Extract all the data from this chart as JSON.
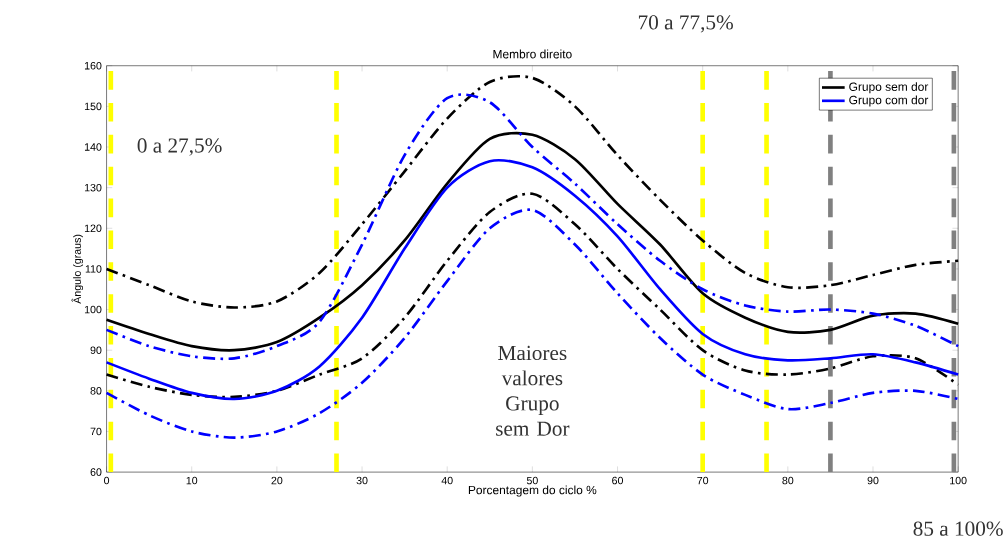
{
  "chart_data": {
    "type": "line",
    "title": "Membro direito",
    "xlabel": "Porcentagem do ciclo %",
    "ylabel": "Ângulo (graus)",
    "x": [
      0,
      5,
      10,
      15,
      20,
      25,
      30,
      35,
      40,
      45,
      50,
      55,
      60,
      65,
      70,
      75,
      80,
      85,
      90,
      95,
      100
    ],
    "series": [
      {
        "color": "#000000",
        "line_style": "dashdot",
        "values": [
          110,
          106,
          102,
          100.5,
          102,
          109,
          121,
          134,
          147,
          156,
          157,
          150,
          138,
          127,
          117,
          109,
          105.5,
          106,
          108.5,
          111,
          112
        ]
      },
      {
        "name": "Grupo sem dor",
        "color": "#000000",
        "line_style": "solid",
        "values": [
          97.5,
          94,
          91,
          90,
          92,
          98,
          106,
          117,
          131,
          142,
          143,
          137,
          126,
          116,
          104,
          98,
          94.5,
          95,
          98.5,
          99,
          96.5
        ]
      },
      {
        "color": "#000000",
        "line_style": "dashdot",
        "values": [
          84,
          81,
          79,
          78.5,
          80,
          84,
          88,
          98,
          112,
          124,
          128.5,
          121,
          110,
          100,
          90,
          85,
          84,
          85.5,
          88.5,
          88,
          81.5
        ]
      },
      {
        "color": "#0000ff",
        "line_style": "dashdot",
        "values": [
          95,
          91,
          88.5,
          88,
          91,
          97,
          116,
          138,
          152,
          151,
          140,
          131,
          121,
          112,
          105,
          101,
          99.5,
          100,
          99,
          96,
          91
        ]
      },
      {
        "name": "Grupo com dor",
        "color": "#0000ff",
        "line_style": "solid",
        "values": [
          87,
          83,
          79.5,
          78,
          80,
          86,
          98,
          115,
          130,
          136.5,
          135,
          128,
          118,
          105,
          94,
          89,
          87.5,
          88,
          89,
          87,
          84
        ]
      },
      {
        "color": "#0000ff",
        "line_style": "dashdot",
        "values": [
          79.5,
          74,
          70,
          68.5,
          70,
          74.5,
          82,
          93,
          107,
          120,
          124.5,
          116,
          104,
          93,
          84,
          79,
          75.5,
          77,
          79.5,
          80,
          78
        ]
      }
    ],
    "xlim": [
      0,
      100
    ],
    "ylim": [
      60,
      160
    ],
    "xticks": [
      0,
      10,
      20,
      30,
      40,
      50,
      60,
      70,
      80,
      90,
      100
    ],
    "yticks": [
      60,
      70,
      80,
      90,
      100,
      110,
      120,
      130,
      140,
      150,
      160
    ],
    "ref_lines": [
      {
        "axis": "x",
        "value": 0.5,
        "color": "#ffff00",
        "line_style": "dashed"
      },
      {
        "axis": "x",
        "value": 27,
        "color": "#ffff00",
        "line_style": "dashed"
      },
      {
        "axis": "x",
        "value": 70,
        "color": "#ffff00",
        "line_style": "dashed"
      },
      {
        "axis": "x",
        "value": 77.5,
        "color": "#ffff00",
        "line_style": "dashed"
      },
      {
        "axis": "x",
        "value": 85,
        "color": "#808080",
        "line_style": "dashed"
      },
      {
        "axis": "x",
        "value": 99.5,
        "color": "#808080",
        "line_style": "dashed"
      }
    ],
    "annotations": [
      "0 a 27,5%",
      "70 a 77,5%",
      "85 a 100%",
      "Maiores valores Grupo sem Dor"
    ],
    "legend": "top right",
    "grid": false,
    "marker": "none"
  }
}
